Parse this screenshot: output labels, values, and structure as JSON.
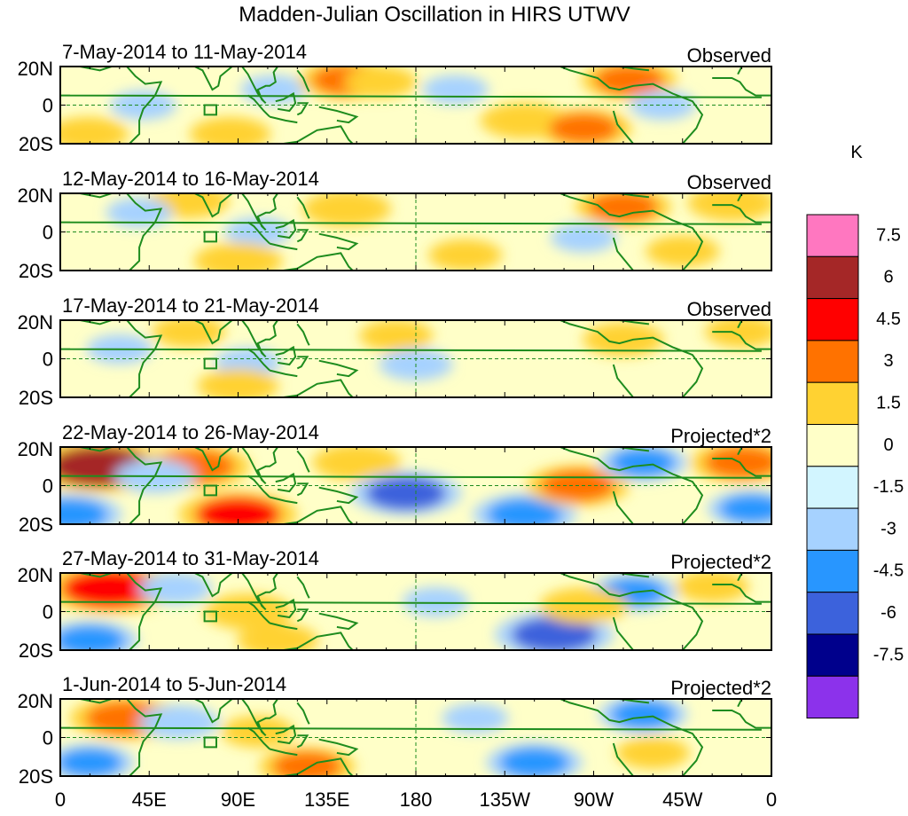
{
  "chart_data": {
    "type": "heatmap",
    "title": "Madden-Julian Oscillation in HIRS UTWV",
    "variable": "HIRS UTWV anomaly",
    "units": "K",
    "lat_range": [
      -20,
      20
    ],
    "lon_range": [
      0,
      360
    ],
    "lat_tick_labels": [
      "20N",
      "0",
      "20S"
    ],
    "lon_tick_labels": [
      "0",
      "45E",
      "90E",
      "135E",
      "180",
      "135W",
      "90W",
      "45W",
      "0"
    ],
    "colorbar": {
      "unit_label": "K",
      "levels": [
        "7.5",
        "6",
        "4.5",
        "3",
        "1.5",
        "0",
        "-1.5",
        "-3",
        "-4.5",
        "-6",
        "-7.5"
      ],
      "colors": [
        "#ff77c0",
        "#a52727",
        "#ff0000",
        "#ff7200",
        "#ffd232",
        "#ffffc8",
        "#d2f5ff",
        "#a6d2ff",
        "#2896ff",
        "#3c62dc",
        "#00008c",
        "#8c32eb"
      ]
    },
    "panels": [
      {
        "date_range": "7-May-2014 to 11-May-2014",
        "status": "Observed",
        "anomalies": [
          {
            "lon": 68,
            "lat": 14,
            "value": 1.5
          },
          {
            "lon": 108,
            "lat": 8,
            "value": -1.5
          },
          {
            "lon": 42,
            "lat": 0,
            "value": -1.5
          },
          {
            "lon": 145,
            "lat": 13,
            "value": 3.5
          },
          {
            "lon": 162,
            "lat": 12,
            "value": 2
          },
          {
            "lon": 86,
            "lat": -15,
            "value": 2.5
          },
          {
            "lon": 14,
            "lat": -15,
            "value": 2.5
          },
          {
            "lon": 235,
            "lat": -8,
            "value": 3
          },
          {
            "lon": 265,
            "lat": -12,
            "value": 3.5
          },
          {
            "lon": 288,
            "lat": 13,
            "value": 3.5
          },
          {
            "lon": 305,
            "lat": 0,
            "value": -1.5
          },
          {
            "lon": 200,
            "lat": 8,
            "value": -1.5
          }
        ]
      },
      {
        "date_range": "12-May-2014 to 16-May-2014",
        "status": "Observed",
        "anomalies": [
          {
            "lon": 65,
            "lat": 16,
            "value": 2.5
          },
          {
            "lon": 145,
            "lat": 12,
            "value": 3
          },
          {
            "lon": 100,
            "lat": 0,
            "value": -1.5
          },
          {
            "lon": 90,
            "lat": -15,
            "value": 3
          },
          {
            "lon": 40,
            "lat": 10,
            "value": -1.5
          },
          {
            "lon": 205,
            "lat": -12,
            "value": 2
          },
          {
            "lon": 285,
            "lat": 13,
            "value": 3.5
          },
          {
            "lon": 265,
            "lat": -3,
            "value": -1.5
          },
          {
            "lon": 340,
            "lat": 15,
            "value": 3
          },
          {
            "lon": 315,
            "lat": -10,
            "value": 2
          }
        ]
      },
      {
        "date_range": "17-May-2014 to 21-May-2014",
        "status": "Observed",
        "anomalies": [
          {
            "lon": 65,
            "lat": 14,
            "value": 2
          },
          {
            "lon": 170,
            "lat": 12,
            "value": 2
          },
          {
            "lon": 95,
            "lat": -2,
            "value": -1.5
          },
          {
            "lon": 90,
            "lat": -14,
            "value": 2.5
          },
          {
            "lon": 180,
            "lat": -3,
            "value": -2
          },
          {
            "lon": 285,
            "lat": 10,
            "value": 2.5
          },
          {
            "lon": 240,
            "lat": -10,
            "value": 1.5
          },
          {
            "lon": 30,
            "lat": 5,
            "value": -1.5
          },
          {
            "lon": 345,
            "lat": 14,
            "value": 2
          }
        ]
      },
      {
        "date_range": "22-May-2014 to 26-May-2014",
        "status": "Projected*2",
        "anomalies": [
          {
            "lon": 20,
            "lat": 10,
            "value": 6.5
          },
          {
            "lon": 68,
            "lat": 10,
            "value": 4.5
          },
          {
            "lon": 48,
            "lat": 5,
            "value": -2.5
          },
          {
            "lon": 90,
            "lat": -15,
            "value": 5
          },
          {
            "lon": 150,
            "lat": 12,
            "value": 3
          },
          {
            "lon": 175,
            "lat": -4,
            "value": -4.5
          },
          {
            "lon": 235,
            "lat": -15,
            "value": -4
          },
          {
            "lon": 262,
            "lat": 0,
            "value": 4
          },
          {
            "lon": 5,
            "lat": -15,
            "value": -4
          },
          {
            "lon": 295,
            "lat": 12,
            "value": -3
          },
          {
            "lon": 345,
            "lat": 12,
            "value": 4
          },
          {
            "lon": 350,
            "lat": -12,
            "value": -3
          }
        ]
      },
      {
        "date_range": "27-May-2014 to 31-May-2014",
        "status": "Projected*2",
        "anomalies": [
          {
            "lon": 25,
            "lat": 12,
            "value": 6
          },
          {
            "lon": 15,
            "lat": -15,
            "value": -3.5
          },
          {
            "lon": 58,
            "lat": 12,
            "value": -2
          },
          {
            "lon": 95,
            "lat": 0,
            "value": 3
          },
          {
            "lon": 110,
            "lat": -15,
            "value": 2.5
          },
          {
            "lon": 250,
            "lat": -12,
            "value": -5
          },
          {
            "lon": 290,
            "lat": 10,
            "value": -3
          },
          {
            "lon": 265,
            "lat": 3,
            "value": 3
          },
          {
            "lon": 190,
            "lat": 5,
            "value": -1.5
          },
          {
            "lon": 330,
            "lat": 13,
            "value": 2
          }
        ]
      },
      {
        "date_range": "1-Jun-2014 to 5-Jun-2014",
        "status": "Projected*2",
        "anomalies": [
          {
            "lon": 33,
            "lat": 10,
            "value": 4.5
          },
          {
            "lon": 60,
            "lat": 8,
            "value": -2.5
          },
          {
            "lon": 100,
            "lat": 3,
            "value": 2
          },
          {
            "lon": 125,
            "lat": -15,
            "value": 3.5
          },
          {
            "lon": 240,
            "lat": -13,
            "value": -3.5
          },
          {
            "lon": 295,
            "lat": 12,
            "value": -3
          },
          {
            "lon": 15,
            "lat": -13,
            "value": -3
          },
          {
            "lon": 300,
            "lat": -8,
            "value": 2
          },
          {
            "lon": 210,
            "lat": 10,
            "value": -1.5
          }
        ]
      }
    ]
  }
}
